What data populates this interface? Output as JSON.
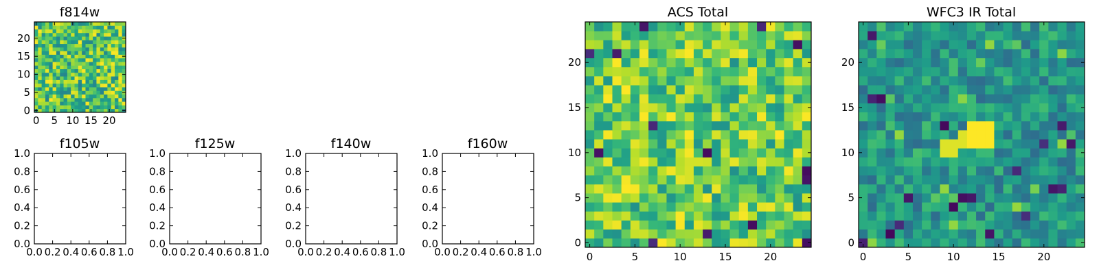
{
  "chart_data": [
    {
      "type": "heatmap",
      "title": "f814w",
      "xlim": [
        -0.5,
        24.5
      ],
      "ylim": [
        -0.5,
        24.5
      ],
      "xticks": [
        0,
        5,
        10,
        15,
        20
      ],
      "yticks": [
        0,
        5,
        10,
        15,
        20
      ],
      "colormap": "viridis",
      "grid_size": [
        25,
        25
      ],
      "seed": 17,
      "value_range": [
        0,
        1
      ]
    },
    {
      "type": "heatmap",
      "title": "f105w",
      "xlim": [
        0,
        1
      ],
      "ylim": [
        0,
        1
      ],
      "xticks": [
        "0.0",
        "0.2",
        "0.4",
        "0.6",
        "0.8",
        "1.0"
      ],
      "yticks": [
        "0.0",
        "0.2",
        "0.4",
        "0.6",
        "0.8",
        "1.0"
      ],
      "empty": true
    },
    {
      "type": "heatmap",
      "title": "f125w",
      "xlim": [
        0,
        1
      ],
      "ylim": [
        0,
        1
      ],
      "xticks": [
        "0.0",
        "0.2",
        "0.4",
        "0.6",
        "0.8",
        "1.0"
      ],
      "yticks": [
        "0.0",
        "0.2",
        "0.4",
        "0.6",
        "0.8",
        "1.0"
      ],
      "empty": true
    },
    {
      "type": "heatmap",
      "title": "f140w",
      "xlim": [
        0,
        1
      ],
      "ylim": [
        0,
        1
      ],
      "xticks": [
        "0.0",
        "0.2",
        "0.4",
        "0.6",
        "0.8",
        "1.0"
      ],
      "yticks": [
        "0.0",
        "0.2",
        "0.4",
        "0.6",
        "0.8",
        "1.0"
      ],
      "empty": true
    },
    {
      "type": "heatmap",
      "title": "f160w",
      "xlim": [
        0,
        1
      ],
      "ylim": [
        0,
        1
      ],
      "xticks": [
        "0.0",
        "0.2",
        "0.4",
        "0.6",
        "0.8",
        "1.0"
      ],
      "yticks": [
        "0.0",
        "0.2",
        "0.4",
        "0.6",
        "0.8",
        "1.0"
      ],
      "empty": true
    },
    {
      "type": "heatmap",
      "title": "ACS Total",
      "xlim": [
        -0.5,
        24.5
      ],
      "ylim": [
        -0.5,
        24.5
      ],
      "xticks": [
        0,
        5,
        10,
        15,
        20
      ],
      "yticks": [
        0,
        5,
        10,
        15,
        20
      ],
      "colormap": "viridis",
      "grid_size": [
        25,
        25
      ],
      "seed": 42,
      "value_range": [
        0,
        1
      ],
      "dark_pixels": [
        [
          7,
          0
        ],
        [
          13,
          1
        ],
        [
          24,
          0
        ],
        [
          1,
          10
        ],
        [
          24,
          7
        ],
        [
          24,
          8
        ],
        [
          7,
          13
        ],
        [
          13,
          10
        ],
        [
          0,
          21
        ],
        [
          3,
          21
        ],
        [
          6,
          24
        ],
        [
          19,
          24
        ],
        [
          23,
          22
        ],
        [
          18,
          2
        ]
      ]
    },
    {
      "type": "heatmap",
      "title": "WFC3 IR Total",
      "xlim": [
        -0.5,
        24.5
      ],
      "ylim": [
        -0.5,
        24.5
      ],
      "xticks": [
        0,
        5,
        10,
        15,
        20
      ],
      "yticks": [
        0,
        5,
        10,
        15,
        20
      ],
      "colormap": "viridis",
      "grid_size": [
        25,
        25
      ],
      "seed": 7,
      "value_range": [
        0,
        1
      ],
      "bright_block": {
        "x": [
          12,
          14
        ],
        "y": [
          11,
          13
        ]
      },
      "bright_pixels": [
        [
          9,
          10
        ],
        [
          9,
          11
        ],
        [
          10,
          10
        ],
        [
          10,
          11
        ],
        [
          11,
          11
        ],
        [
          11,
          12
        ]
      ],
      "dark_pixels": [
        [
          1,
          23
        ],
        [
          1,
          16
        ],
        [
          2,
          16
        ],
        [
          9,
          13
        ],
        [
          5,
          5
        ],
        [
          10,
          4
        ],
        [
          11,
          5
        ],
        [
          12,
          5
        ],
        [
          17,
          8
        ],
        [
          21,
          6
        ],
        [
          22,
          6
        ],
        [
          18,
          3
        ],
        [
          20,
          11
        ],
        [
          22,
          13
        ],
        [
          14,
          1
        ],
        [
          4,
          2
        ],
        [
          3,
          1
        ],
        [
          0,
          0
        ],
        [
          23,
          11
        ]
      ]
    }
  ]
}
